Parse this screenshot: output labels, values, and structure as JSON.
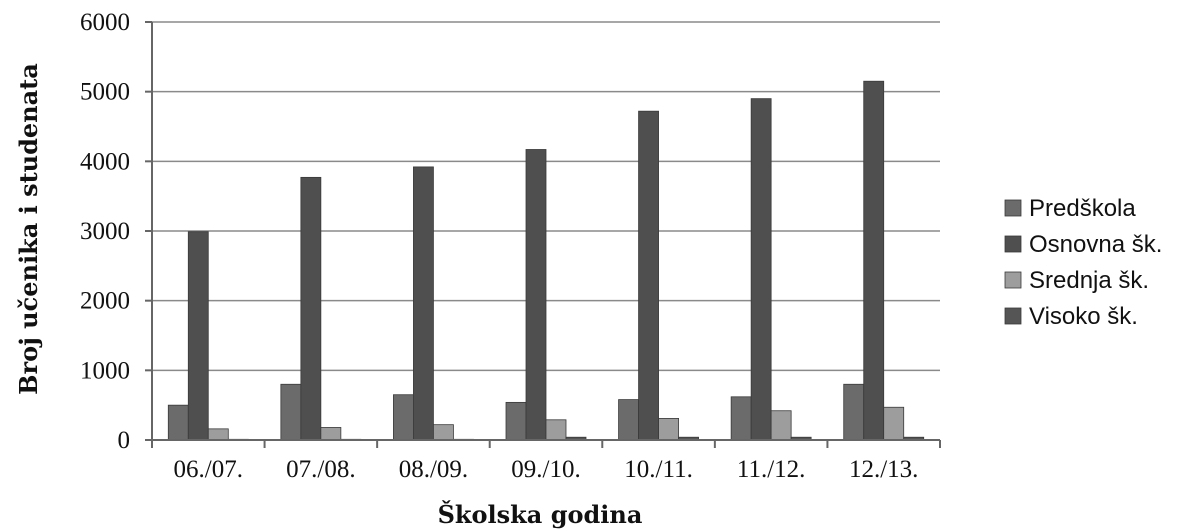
{
  "chart_data": {
    "type": "bar",
    "title": "",
    "xlabel": "Školska godina",
    "ylabel": "Broj učenika i studenata",
    "ylim": [
      0,
      6000
    ],
    "yticks": [
      0,
      1000,
      2000,
      3000,
      4000,
      5000,
      6000
    ],
    "grid": true,
    "legend_position": "right",
    "categories": [
      "06./07.",
      "07./08.",
      "08./09.",
      "09./10.",
      "10./11.",
      "11./12.",
      "12./13."
    ],
    "series": [
      {
        "name": "Predškola",
        "color": "#6b6b6b",
        "values": [
          500,
          800,
          650,
          540,
          580,
          620,
          800
        ]
      },
      {
        "name": "Osnovna šk.",
        "color": "#4f4f4f",
        "values": [
          2990,
          3770,
          3920,
          4170,
          4720,
          4900,
          5150
        ]
      },
      {
        "name": "Srednja šk.",
        "color": "#9d9d9d",
        "values": [
          160,
          180,
          220,
          290,
          310,
          420,
          470
        ]
      },
      {
        "name": "Visoko šk.",
        "color": "#555555",
        "values": [
          10,
          10,
          10,
          40,
          40,
          40,
          40
        ]
      }
    ]
  }
}
